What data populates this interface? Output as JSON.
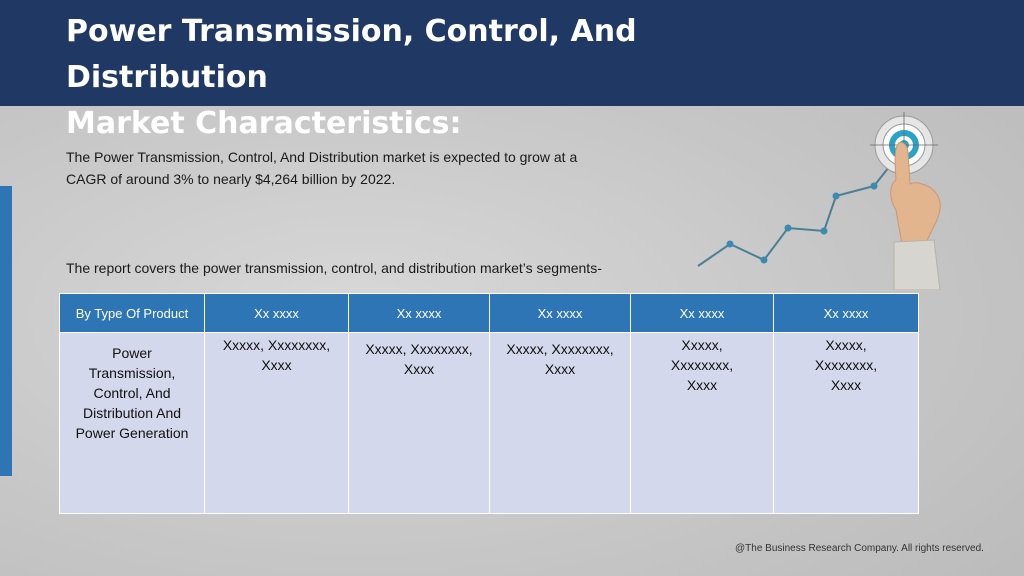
{
  "header": {
    "title_line1": "Power Transmission, Control, And Distribution",
    "title_line2": "Market Characteristics:"
  },
  "body": {
    "intro_line1": "The Power Transmission, Control, And Distribution market is expected to grow at a",
    "intro_line2": "CAGR of around 3% to nearly $4,264 billion by 2022.",
    "segments_text": "The report covers the power transmission, control, and distribution market’s segments-"
  },
  "table": {
    "headers": [
      "By Type Of Product",
      "Xx xxxx",
      "Xx xxxx",
      "Xx xxxx",
      "Xx xxxx",
      "Xx xxxx"
    ],
    "row": [
      [
        "Power",
        "Transmission,",
        "Control, And",
        "Distribution And",
        "Power Generation"
      ],
      [
        "Xxxxx, Xxxxxxxx,",
        "Xxxx"
      ],
      [
        "Xxxxx, Xxxxxxxx,",
        "Xxxx"
      ],
      [
        "Xxxxx, Xxxxxxxx,",
        "Xxxx"
      ],
      [
        "Xxxxx,",
        "Xxxxxxxx,",
        "Xxxx"
      ],
      [
        "Xxxxx,",
        "Xxxxxxxx,",
        "Xxxx"
      ]
    ]
  },
  "footer": {
    "copyright": "@The Business Research Company. All rights reserved."
  },
  "colors": {
    "header_bg": "#1f3864",
    "accent_blue": "#2e75b6",
    "table_cell_bg": "#d3d8ec"
  }
}
